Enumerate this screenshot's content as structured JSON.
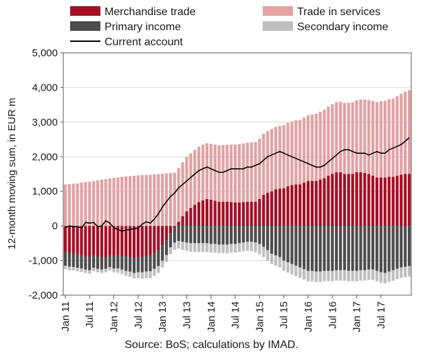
{
  "chart_data": {
    "type": "bar",
    "stacked": true,
    "ylabel": "12-month moving sum, in EUR m",
    "ylim": [
      -2000,
      5000
    ],
    "yticks": [
      -2000,
      -1000,
      0,
      1000,
      2000,
      3000,
      4000,
      5000
    ],
    "ytick_labels": [
      "-2,000",
      "-1,000",
      "0",
      "1,000",
      "2,000",
      "3,000",
      "4,000",
      "5,000"
    ],
    "grid": "horizontal",
    "legend_position": "top",
    "x_start": "Jan 11",
    "xtick_labels": [
      "Jan 11",
      "Jul 11",
      "Jan 12",
      "Jul 12",
      "Jan 13",
      "Jul 13",
      "Jan 14",
      "Jul 14",
      "Jan 15",
      "Jul 15",
      "Jan 16",
      "Jul 16",
      "Jan 17",
      "Jul 17"
    ],
    "xtick_every": 6,
    "source": "Source: BoS; calculations by IMAD.",
    "series": [
      {
        "name": "Merchandise trade",
        "kind": "bar",
        "color": "#a50f26",
        "values": [
          -750,
          -780,
          -790,
          -810,
          -850,
          -880,
          -900,
          -850,
          -880,
          -900,
          -900,
          -850,
          -870,
          -850,
          -860,
          -880,
          -900,
          -920,
          -900,
          -900,
          -880,
          -850,
          -780,
          -700,
          -560,
          -420,
          -220,
          -60,
          120,
          280,
          420,
          520,
          610,
          690,
          740,
          780,
          760,
          730,
          700,
          700,
          700,
          690,
          680,
          680,
          690,
          700,
          700,
          700,
          780,
          900,
          960,
          1000,
          1060,
          1080,
          1090,
          1150,
          1180,
          1200,
          1200,
          1250,
          1300,
          1300,
          1300,
          1340,
          1380,
          1450,
          1500,
          1550,
          1550,
          1500,
          1500,
          1500,
          1550,
          1550,
          1530,
          1500,
          1450,
          1400,
          1400,
          1400,
          1420,
          1420,
          1450,
          1480,
          1500,
          1500
        ]
      },
      {
        "name": "Trade in services",
        "kind": "bar",
        "color": "#e2a2a2",
        "values": [
          1200,
          1210,
          1220,
          1230,
          1250,
          1270,
          1280,
          1300,
          1320,
          1340,
          1350,
          1370,
          1390,
          1400,
          1420,
          1430,
          1440,
          1450,
          1460,
          1470,
          1470,
          1480,
          1490,
          1500,
          1510,
          1520,
          1530,
          1540,
          1550,
          1560,
          1570,
          1580,
          1590,
          1600,
          1610,
          1610,
          1610,
          1620,
          1630,
          1640,
          1650,
          1660,
          1670,
          1680,
          1690,
          1700,
          1710,
          1720,
          1740,
          1760,
          1780,
          1800,
          1800,
          1810,
          1820,
          1830,
          1840,
          1850,
          1860,
          1880,
          1900,
          1920,
          1940,
          1960,
          1980,
          2000,
          2020,
          2030,
          2040,
          2050,
          2060,
          2070,
          2080,
          2100,
          2120,
          2140,
          2160,
          2180,
          2200,
          2220,
          2240,
          2260,
          2300,
          2340,
          2380,
          2420
        ]
      },
      {
        "name": "Primary income",
        "kind": "bar",
        "color": "#4d4d4d",
        "values": [
          -400,
          -400,
          -400,
          -400,
          -380,
          -380,
          -380,
          -360,
          -360,
          -360,
          -340,
          -340,
          -360,
          -380,
          -400,
          -420,
          -420,
          -440,
          -440,
          -440,
          -440,
          -460,
          -460,
          -460,
          -440,
          -420,
          -400,
          -420,
          -440,
          -460,
          -480,
          -500,
          -500,
          -500,
          -500,
          -500,
          -520,
          -520,
          -540,
          -540,
          -540,
          -520,
          -520,
          -500,
          -480,
          -460,
          -460,
          -480,
          -520,
          -600,
          -700,
          -800,
          -850,
          -900,
          -1000,
          -1050,
          -1100,
          -1150,
          -1200,
          -1250,
          -1300,
          -1300,
          -1320,
          -1320,
          -1300,
          -1300,
          -1300,
          -1280,
          -1280,
          -1280,
          -1300,
          -1300,
          -1300,
          -1280,
          -1280,
          -1260,
          -1260,
          -1300,
          -1340,
          -1360,
          -1320,
          -1280,
          -1240,
          -1200,
          -1180,
          -1160
        ]
      },
      {
        "name": "Secondary income",
        "kind": "bar",
        "color": "#bfbfbf",
        "values": [
          -100,
          -100,
          -100,
          -100,
          -100,
          -100,
          -100,
          -100,
          -100,
          -100,
          -100,
          -100,
          -110,
          -120,
          -130,
          -140,
          -150,
          -160,
          -170,
          -180,
          -190,
          -200,
          -200,
          -200,
          -200,
          -200,
          -200,
          -210,
          -220,
          -230,
          -240,
          -250,
          -250,
          -250,
          -250,
          -250,
          -250,
          -250,
          -250,
          -250,
          -250,
          -250,
          -250,
          -250,
          -250,
          -260,
          -270,
          -280,
          -300,
          -300,
          -300,
          -300,
          -300,
          -300,
          -300,
          -300,
          -300,
          -300,
          -300,
          -300,
          -300,
          -300,
          -300,
          -300,
          -300,
          -300,
          -300,
          -300,
          -300,
          -300,
          -300,
          -300,
          -300,
          -300,
          -300,
          -300,
          -300,
          -300,
          -300,
          -300,
          -300,
          -300,
          -300,
          -300,
          -300,
          -300
        ]
      },
      {
        "name": "Current account",
        "kind": "line",
        "color": "#000000",
        "values": [
          -50,
          0,
          -20,
          -20,
          -60,
          100,
          80,
          100,
          -20,
          0,
          150,
          80,
          -50,
          -100,
          -150,
          -120,
          -100,
          -80,
          -60,
          50,
          120,
          80,
          200,
          350,
          550,
          700,
          850,
          950,
          1100,
          1200,
          1300,
          1400,
          1500,
          1600,
          1650,
          1700,
          1650,
          1600,
          1550,
          1550,
          1600,
          1650,
          1650,
          1650,
          1650,
          1700,
          1700,
          1750,
          1800,
          1900,
          2000,
          2050,
          2100,
          2150,
          2100,
          2050,
          2000,
          1950,
          1900,
          1850,
          1800,
          1750,
          1700,
          1700,
          1750,
          1850,
          1950,
          2050,
          2150,
          2200,
          2200,
          2150,
          2100,
          2100,
          2100,
          2050,
          2100,
          2150,
          2100,
          2100,
          2200,
          2250,
          2300,
          2350,
          2450,
          2550
        ]
      }
    ]
  }
}
